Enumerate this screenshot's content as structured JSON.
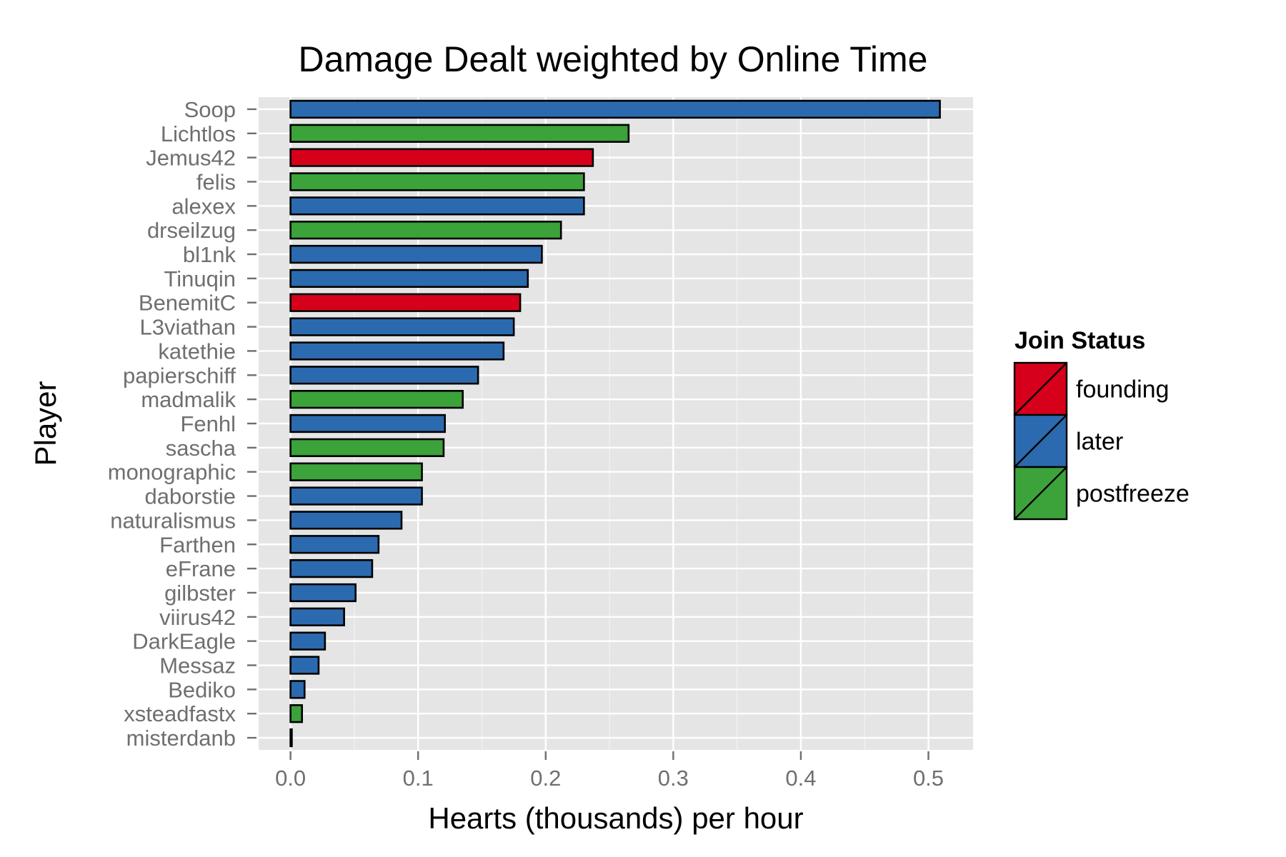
{
  "chart_data": {
    "type": "bar",
    "orientation": "horizontal",
    "title": "Damage Dealt weighted by Online Time",
    "xlabel": "Hearts (thousands) per hour",
    "ylabel": "Player",
    "xlim": [
      -0.025,
      0.535
    ],
    "x_ticks": [
      "0.0",
      "0.1",
      "0.2",
      "0.3",
      "0.4",
      "0.5"
    ],
    "grid": true,
    "legend": {
      "title": "Join Status",
      "position": "right",
      "entries": [
        {
          "label": "founding",
          "color": "#d7001a"
        },
        {
          "label": "later",
          "color": "#2c6aaf"
        },
        {
          "label": "postfreeze",
          "color": "#3ca23a"
        }
      ]
    },
    "bars": [
      {
        "player": "Soop",
        "value": 0.509,
        "status": "later"
      },
      {
        "player": "Lichtlos",
        "value": 0.265,
        "status": "postfreeze"
      },
      {
        "player": "Jemus42",
        "value": 0.237,
        "status": "founding"
      },
      {
        "player": "felis",
        "value": 0.23,
        "status": "postfreeze"
      },
      {
        "player": "alexex",
        "value": 0.23,
        "status": "later"
      },
      {
        "player": "drseilzug",
        "value": 0.212,
        "status": "postfreeze"
      },
      {
        "player": "bl1nk",
        "value": 0.197,
        "status": "later"
      },
      {
        "player": "Tinuqin",
        "value": 0.186,
        "status": "later"
      },
      {
        "player": "BenemitC",
        "value": 0.18,
        "status": "founding"
      },
      {
        "player": "L3viathan",
        "value": 0.175,
        "status": "later"
      },
      {
        "player": "katethie",
        "value": 0.167,
        "status": "later"
      },
      {
        "player": "papierschiff",
        "value": 0.147,
        "status": "later"
      },
      {
        "player": "madmalik",
        "value": 0.135,
        "status": "postfreeze"
      },
      {
        "player": "Fenhl",
        "value": 0.121,
        "status": "later"
      },
      {
        "player": "sascha",
        "value": 0.12,
        "status": "postfreeze"
      },
      {
        "player": "monographic",
        "value": 0.103,
        "status": "postfreeze"
      },
      {
        "player": "daborstie",
        "value": 0.103,
        "status": "later"
      },
      {
        "player": "naturalismus",
        "value": 0.087,
        "status": "later"
      },
      {
        "player": "Farthen",
        "value": 0.069,
        "status": "later"
      },
      {
        "player": "eFrane",
        "value": 0.064,
        "status": "later"
      },
      {
        "player": "gilbster",
        "value": 0.051,
        "status": "later"
      },
      {
        "player": "viirus42",
        "value": 0.042,
        "status": "later"
      },
      {
        "player": "DarkEagle",
        "value": 0.027,
        "status": "later"
      },
      {
        "player": "Messaz",
        "value": 0.022,
        "status": "later"
      },
      {
        "player": "Bediko",
        "value": 0.011,
        "status": "later"
      },
      {
        "player": "xsteadfastx",
        "value": 0.009,
        "status": "postfreeze"
      },
      {
        "player": "misterdanb",
        "value": 0.001,
        "status": "later"
      }
    ]
  }
}
